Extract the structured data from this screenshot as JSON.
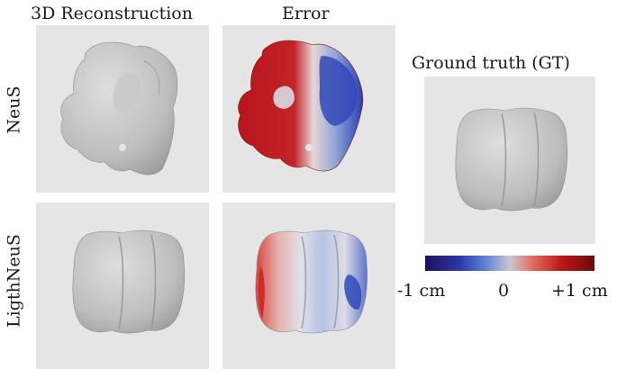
{
  "columns": {
    "reconstruction": "3D Reconstruction",
    "error": "Error",
    "ground_truth": "Ground truth (GT)"
  },
  "rows": {
    "neus": "NeuS",
    "lightneus": "LigthNeuS"
  },
  "colorbar": {
    "min_label": "-1 cm",
    "mid_label": "0",
    "max_label": "+1 cm",
    "colors": [
      "#1c1357",
      "#2d35a8",
      "#c9c9cf",
      "#c01818",
      "#6a0c0c"
    ]
  }
}
